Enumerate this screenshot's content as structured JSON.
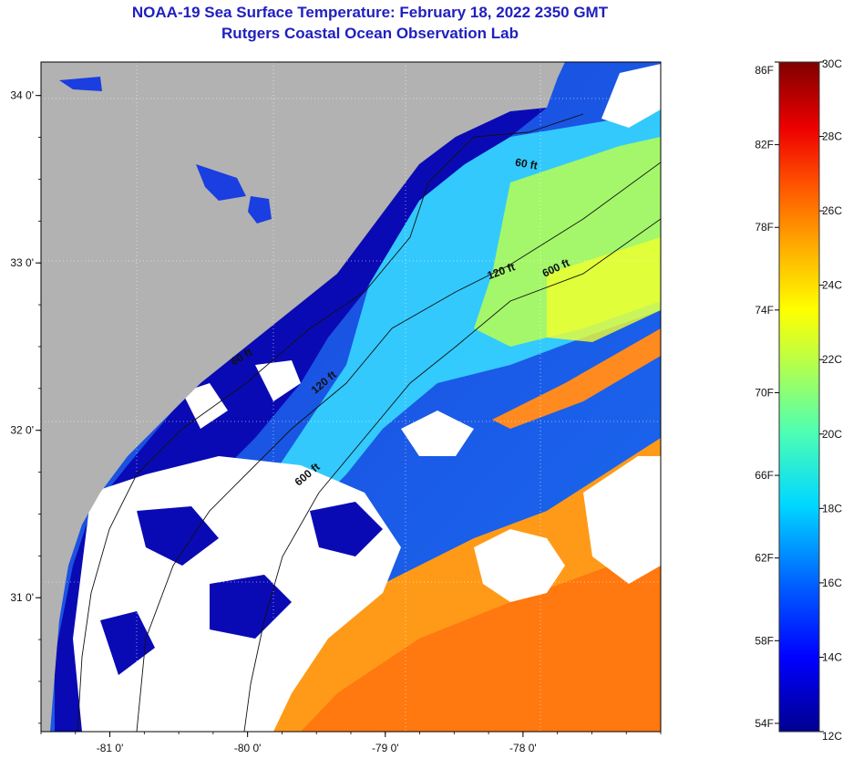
{
  "title": {
    "line1": "NOAA-19 Sea Surface Temperature:  February 18, 2022 2350 GMT",
    "line2": "Rutgers Coastal Ocean Observation Lab"
  },
  "map": {
    "lon_range": [
      -81.5,
      -77.0
    ],
    "lat_range": [
      30.2,
      34.2
    ],
    "lon_ticks": [
      {
        "value": -81,
        "label": "-81 0'"
      },
      {
        "value": -80,
        "label": "-80 0'"
      },
      {
        "value": -79,
        "label": "-79 0'"
      },
      {
        "value": -78,
        "label": "-78 0'"
      }
    ],
    "lat_ticks": [
      {
        "value": 34,
        "label": "34 0'"
      },
      {
        "value": 33,
        "label": "33 0'"
      },
      {
        "value": 32,
        "label": "32 0'"
      },
      {
        "value": 31,
        "label": "31 0'"
      }
    ],
    "contour_labels": [
      {
        "text": "60 ft",
        "lon": -77.98,
        "lat": 33.57,
        "angle": 10
      },
      {
        "text": "120 ft",
        "lon": -78.15,
        "lat": 32.93,
        "angle": -20
      },
      {
        "text": "600 ft",
        "lon": -77.75,
        "lat": 32.95,
        "angle": -25
      },
      {
        "text": "60 ft",
        "lon": -80.03,
        "lat": 32.42,
        "angle": -30
      },
      {
        "text": "120 ft",
        "lon": -79.43,
        "lat": 32.27,
        "angle": -40
      },
      {
        "text": "600 ft",
        "lon": -79.55,
        "lat": 31.72,
        "angle": -40
      }
    ],
    "colors": {
      "land": "#b2b2b2",
      "cloud": "#ffffff",
      "cold_water": "#0a0ab4"
    }
  },
  "colorbar": {
    "min_c": 12,
    "max_c": 30,
    "celsius_ticks": [
      {
        "value": 30,
        "label": "30C"
      },
      {
        "value": 28,
        "label": "28C"
      },
      {
        "value": 26,
        "label": "26C"
      },
      {
        "value": 24,
        "label": "24C"
      },
      {
        "value": 22,
        "label": "22C"
      },
      {
        "value": 20,
        "label": "20C"
      },
      {
        "value": 18,
        "label": "18C"
      },
      {
        "value": 16,
        "label": "16C"
      },
      {
        "value": 14,
        "label": "14C"
      },
      {
        "value": 12,
        "label": "12C"
      }
    ],
    "fahrenheit_ticks": [
      {
        "value": 86,
        "label": "86F"
      },
      {
        "value": 82,
        "label": "82F"
      },
      {
        "value": 78,
        "label": "78F"
      },
      {
        "value": 74,
        "label": "74F"
      },
      {
        "value": 70,
        "label": "70F"
      },
      {
        "value": 66,
        "label": "66F"
      },
      {
        "value": 62,
        "label": "62F"
      },
      {
        "value": 58,
        "label": "58F"
      },
      {
        "value": 54,
        "label": "54F"
      }
    ]
  }
}
